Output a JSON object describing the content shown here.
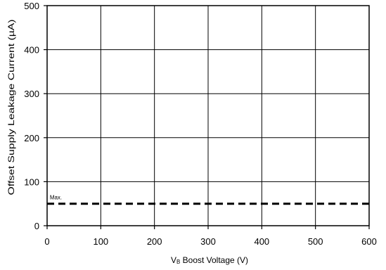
{
  "chart_data": {
    "type": "line",
    "title": "",
    "xlabel_prefix": "V",
    "xlabel_subscript": "B",
    "xlabel_rest": " Boost Voltage (V)",
    "ylabel": "Offset Supply Leakage Current (µA)",
    "xlim": [
      0,
      600
    ],
    "ylim": [
      0,
      500
    ],
    "x_ticks": [
      0,
      100,
      200,
      300,
      400,
      500,
      600
    ],
    "y_ticks": [
      0,
      100,
      200,
      300,
      400,
      500
    ],
    "grid": true,
    "series": [
      {
        "name": "Max.",
        "style": "dashed",
        "color": "#000000",
        "x": [
          0,
          600
        ],
        "y": [
          50,
          50
        ]
      }
    ],
    "annotations": [
      {
        "text": "Max.",
        "x": 5,
        "y": 50
      }
    ]
  }
}
